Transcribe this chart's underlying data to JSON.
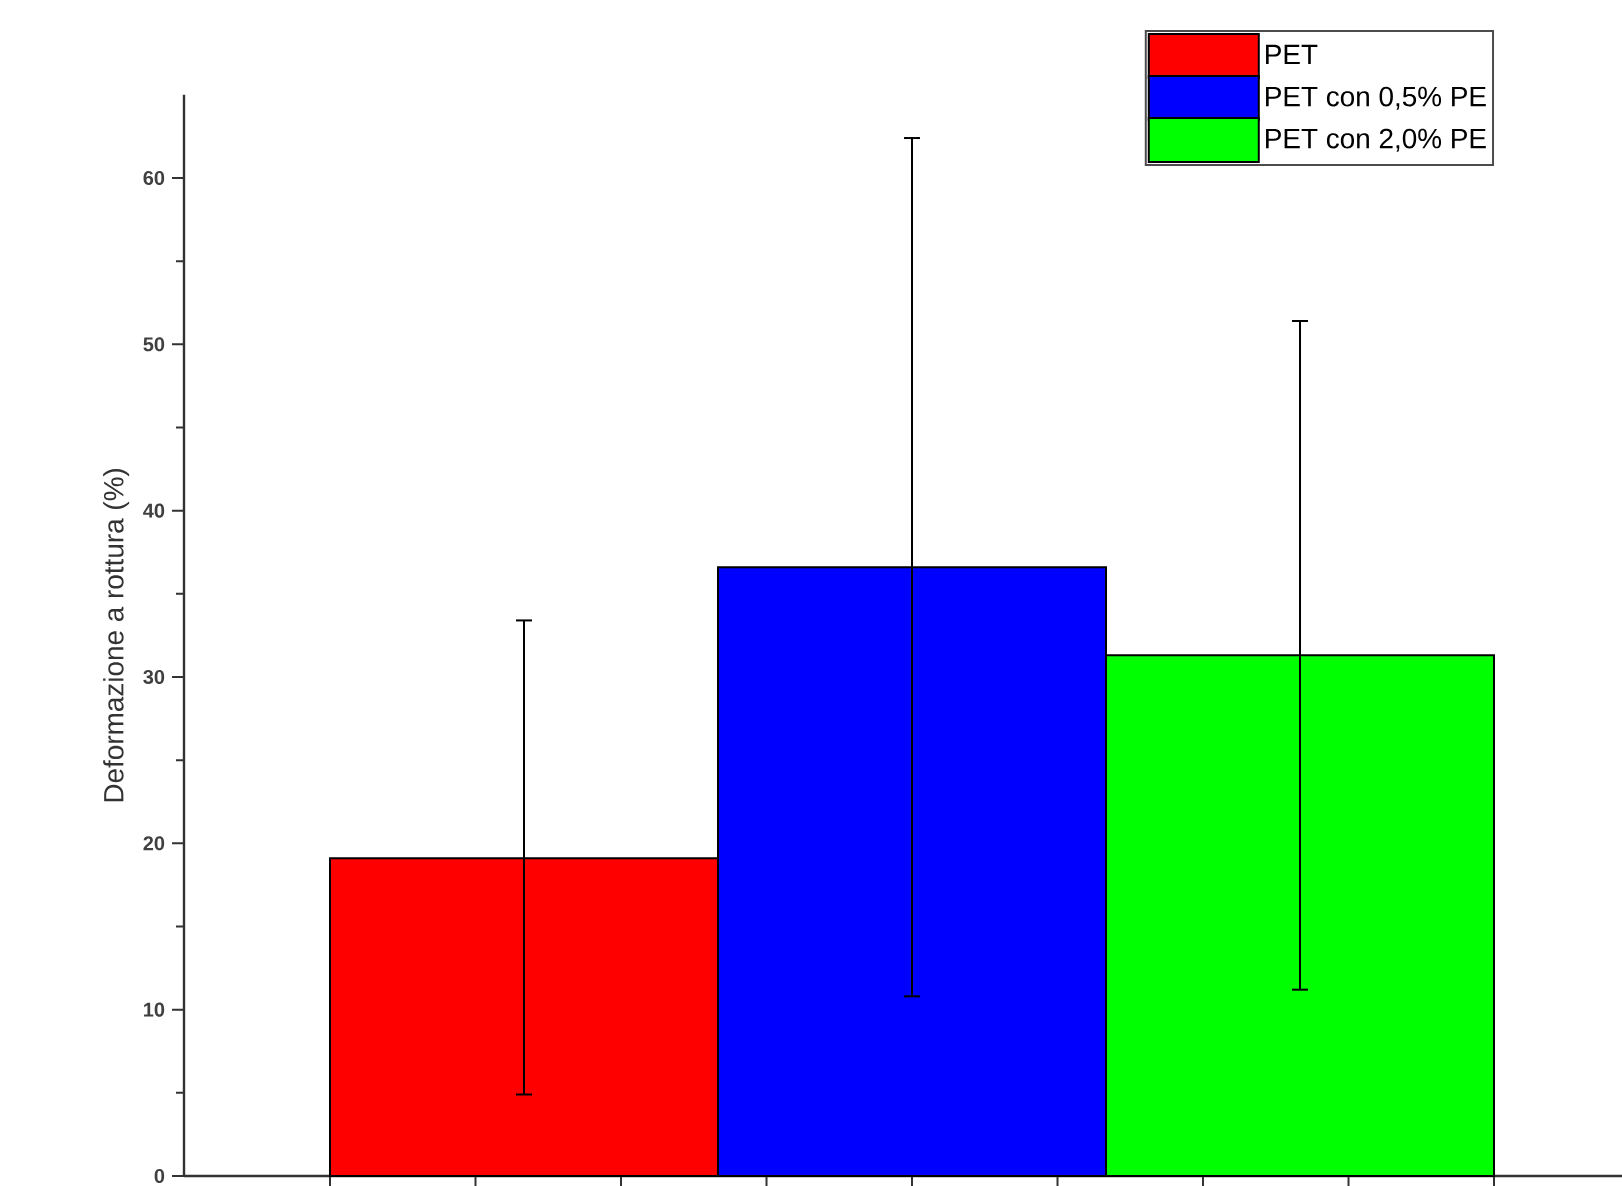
{
  "chart_data": {
    "type": "bar",
    "ylabel": "Deformazione a rottura (%)",
    "categories": [
      null
    ],
    "ylim": [
      0,
      65
    ],
    "yticks": [
      0,
      10,
      20,
      30,
      40,
      50,
      60
    ],
    "legend": "top right",
    "tick_labels": "y",
    "series": [
      {
        "name": "PET",
        "color": "#ff0000",
        "values": [
          19.1
        ],
        "errors": [
          [
            4.9,
            33.4
          ]
        ]
      },
      {
        "name": "PET con 0,5% PE",
        "color": "#0000ff",
        "values": [
          36.6
        ],
        "errors": [
          [
            10.8,
            62.4
          ]
        ]
      },
      {
        "name": "PET con 2,0% PE",
        "color": "#00ff00",
        "values": [
          31.3
        ],
        "errors": [
          [
            11.2,
            51.4
          ]
        ]
      }
    ]
  }
}
